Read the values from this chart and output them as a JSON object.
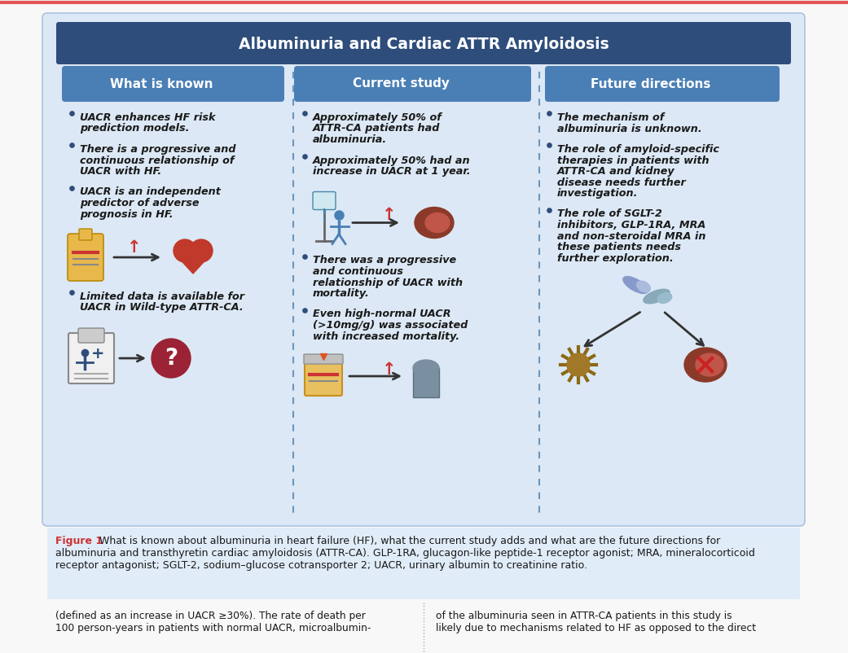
{
  "title": "Albuminuria and Cardiac ATTR Amyloidosis",
  "title_bg": "#2e4d7b",
  "title_color": "#ffffff",
  "outer_bg": "#dce8f5",
  "header_bg": "#4a7fb5",
  "header_color": "#ffffff",
  "col_headers": [
    "What is known",
    "Current study",
    "Future directions"
  ],
  "col1_bullets": [
    "UACR enhances HF risk\nprediction models.",
    "There is a progressive and\ncontinuous relationship of\nUACR with HF.",
    "UACR is an independent\npredictor of adverse\nprognosis in HF.",
    "Limited data is available for\nUACR in Wild-type ATTR-CA."
  ],
  "col2_bullets": [
    "Approximately 50% of\nATTR-CA patients had\nalbuminuria.",
    "Approximately 50% had an\nincrease in UACR at 1 year.",
    "There was a progressive\nand continuous\nrelationship of UACR with\nmortality.",
    "Even high-normal UACR\n(>10mg/g) was associated\nwith increased mortality."
  ],
  "col3_bullets": [
    "The mechanism of\nalbuminuria is unknown.",
    "The role of amyloid-specific\ntherapies in patients with\nATTR-CA and kidney\ndisease needs further\ninvestigation.",
    "The role of SGLT-2\ninhibitors, GLP-1RA, MRA\nand non-steroidal MRA in\nthese patients needs\nfurther exploration."
  ],
  "figure_caption_bold": "Figure 1",
  "figure_caption": " What is known about albuminuria in heart failure (HF), what the current study adds and what are the future directions for albuminuria and transthyretin cardiac amyloidosis (ATTR-CA). GLP-1RA, glucagon-like peptide-1 receptor agonist; MRA, mineralocorticoid receptor antagonist; SGLT-2, sodium–glucose cotransporter 2; UACR, urinary albumin to creatinine ratio.",
  "bottom_text_left": "(defined as an increase in UACR ≥30%). The rate of death per\n100 person-years in patients with normal UACR, microalbumin-",
  "bottom_text_right": "of the albuminuria seen in ATTR-CA patients in this study is\nlikely due to mechanisms related to HF as opposed to the direct",
  "bullet_color": "#2e4d7b",
  "text_color": "#1a1a1a",
  "divider_color": "#5080b0",
  "top_border_color": "#e05555",
  "fig_bg": "#f8f8f8",
  "caption_bg": "#e0ecf8"
}
